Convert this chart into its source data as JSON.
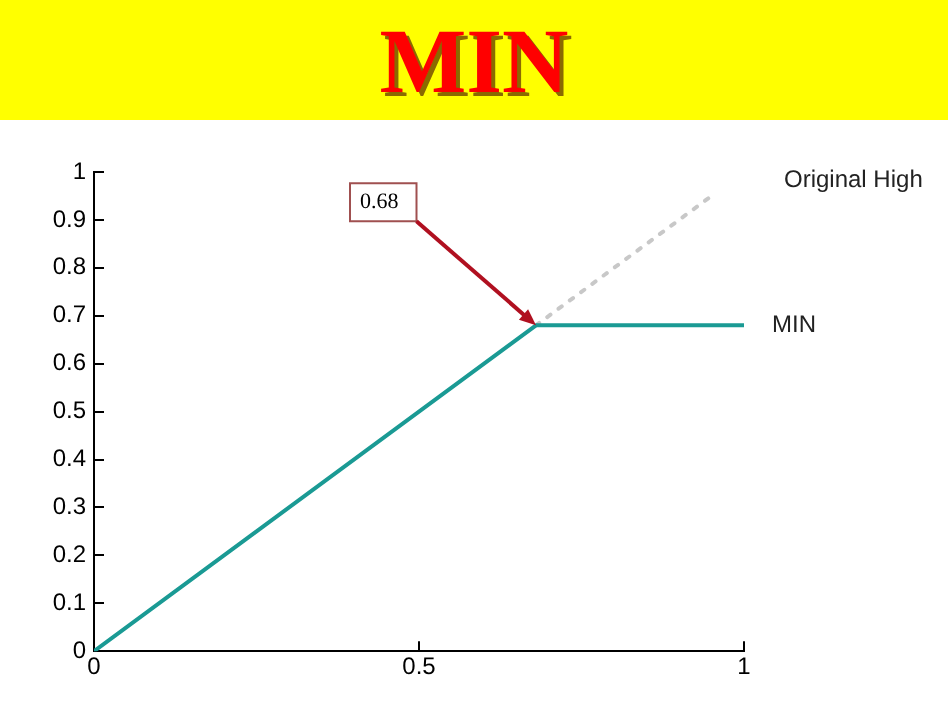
{
  "chart_data": {
    "type": "line",
    "title": "MIN",
    "xlim": [
      0,
      1
    ],
    "xticks": [
      0,
      0.5,
      1
    ],
    "ylim": [
      0,
      1
    ],
    "yticks": [
      0,
      0.1,
      0.2,
      0.3,
      0.4,
      0.5,
      0.6,
      0.7,
      0.8,
      0.9,
      1
    ],
    "grid": false,
    "legend": false,
    "marker": "none",
    "series": [
      {
        "name": "MIN",
        "color": "#1a9a94",
        "x": [
          0,
          0.68,
          1
        ],
        "values": [
          0,
          0.68,
          0.68
        ],
        "line_style": "solid"
      },
      {
        "name": "Original High",
        "color": "#c8c8c8",
        "x": [
          0.68,
          0.95
        ],
        "values": [
          0.68,
          0.95
        ],
        "line_style": "dotted"
      }
    ],
    "annotations": [
      {
        "text": "0.68",
        "x": 0.68,
        "y": 0.68
      }
    ]
  }
}
